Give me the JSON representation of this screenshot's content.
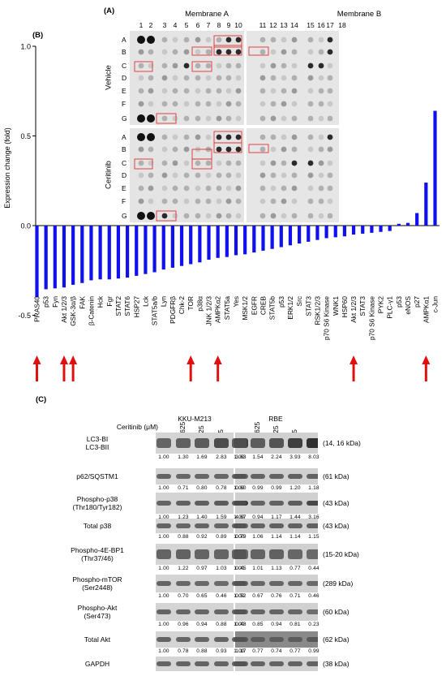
{
  "panel_a": {
    "label": "(A)",
    "membrane_a": "Membrane A",
    "membrane_b": "Membrane B",
    "columns": [
      "1",
      "2",
      "3",
      "4",
      "5",
      "6",
      "7",
      "8",
      "9",
      "10",
      "11",
      "12",
      "13",
      "14",
      "15",
      "16",
      "17",
      "18"
    ],
    "rows": [
      "A",
      "B",
      "C",
      "D",
      "E",
      "F",
      "G"
    ],
    "vehicle_label": "Vehicle",
    "ceritinib_label": "Ceritinib"
  },
  "panel_b_label": "(B)",
  "panel_c_label": "(C)",
  "chart_data": {
    "type": "bar",
    "ylabel": "Expression change (fold)",
    "ylim": [
      -0.5,
      1.0
    ],
    "yticks": [
      "1.0",
      "0.5",
      "0.0",
      "-0.5"
    ],
    "ytick_values": [
      1.0,
      0.5,
      0.0,
      -0.5
    ],
    "bar_color": "#1010ee",
    "categories": [
      "PRAS40",
      "p53",
      "Fyn",
      "Akt 1/2/3",
      "GSK-3α/β",
      "FAK",
      "β-Catenin",
      "Hck",
      "Fgr",
      "STAT2",
      "STAT6",
      "HSP27",
      "Lck",
      "STAT5a/b",
      "Lyn",
      "PDGFRβ",
      "Chk-2",
      "TOR",
      "p38α",
      "JNK 1/2/3",
      "AMPKα2",
      "STAT5a",
      "Yes",
      "MSK1/2",
      "EGFR",
      "CREB",
      "STAT5b",
      "p53",
      "ERK1/2",
      "Src",
      "STAT3",
      "RSK1/2/3",
      "p70 S6 Kinase",
      "WNK1",
      "HSP60",
      "Akt 1/2/3",
      "STAT3",
      "p70 S6 Kinase",
      "PYK2",
      "PLC-γ1",
      "p53",
      "eNOS",
      "p27",
      "AMPKα1",
      "c-Jun"
    ],
    "values": [
      -0.4,
      -0.355,
      -0.35,
      -0.345,
      -0.33,
      -0.32,
      -0.305,
      -0.3,
      -0.3,
      -0.295,
      -0.29,
      -0.28,
      -0.27,
      -0.26,
      -0.245,
      -0.235,
      -0.225,
      -0.215,
      -0.205,
      -0.19,
      -0.18,
      -0.175,
      -0.165,
      -0.16,
      -0.15,
      -0.14,
      -0.13,
      -0.12,
      -0.11,
      -0.1,
      -0.09,
      -0.08,
      -0.07,
      -0.065,
      -0.06,
      -0.05,
      -0.045,
      -0.04,
      -0.035,
      -0.03,
      0.01,
      0.015,
      0.07,
      0.24,
      0.64
    ],
    "highlighted": [
      "PRAS40",
      "Akt 1/2/3",
      "GSK-3α/β",
      "TOR",
      "AMPKα2",
      "Akt 1/2/3",
      "AMPKα1"
    ],
    "highlight_indices": [
      0,
      3,
      4,
      17,
      20,
      35,
      43
    ],
    "arrow_color": "#e01010"
  },
  "panel_c": {
    "cell_line_1": "KKU-M213",
    "cell_line_2": "RBE",
    "ceritinib_label": "Ceritinib (μM)",
    "doses": [
      "0",
      "0.625",
      "1.25",
      "2.5",
      "5"
    ],
    "blots": [
      {
        "name": "LC3-BI\nLC3-BII",
        "kda": "(14, 16 kDa)",
        "vals1": [
          "1.00",
          "1.30",
          "1.69",
          "2.83",
          "3.63"
        ],
        "vals2": [
          "1.00",
          "1.54",
          "2.24",
          "3.93",
          "8.03"
        ]
      },
      {
        "name": "p62/SQSTM1",
        "kda": "(61 kDa)",
        "vals1": [
          "1.00",
          "0.71",
          "0.80",
          "0.78",
          "0.60"
        ],
        "vals2": [
          "1.00",
          "0.99",
          "0.99",
          "1.20",
          "1.18"
        ]
      },
      {
        "name": "Phospho-p38\n(Thr180/Tyr182)",
        "kda": "(43 kDa)",
        "vals1": [
          "1.00",
          "1.23",
          "1.40",
          "1.59",
          "4.67"
        ],
        "vals2": [
          "1.00",
          "0.94",
          "1.17",
          "1.44",
          "3.16"
        ]
      },
      {
        "name": "Total p38",
        "kda": "(43 kDa)",
        "vals1": [
          "1.00",
          "0.88",
          "0.92",
          "0.89",
          "0.79"
        ],
        "vals2": [
          "1.00",
          "1.06",
          "1.14",
          "1.14",
          "1.15"
        ]
      },
      {
        "name": "Phospho-4E-BP1\n(Thr37/46)",
        "kda": "(15-20 kDa)",
        "vals1": [
          "1.00",
          "1.22",
          "0.97",
          "1.03",
          "0.45"
        ],
        "vals2": [
          "1.00",
          "1.01",
          "1.13",
          "0.77",
          "0.44"
        ]
      },
      {
        "name": "Phospho-mTOR\n(Ser2448)",
        "kda": "(289 kDa)",
        "vals1": [
          "1.00",
          "0.70",
          "0.65",
          "0.46",
          "0.52"
        ],
        "vals2": [
          "1.00",
          "0.67",
          "0.76",
          "0.71",
          "0.46"
        ]
      },
      {
        "name": "Phospho-Akt\n(Ser473)",
        "kda": "(60 kDa)",
        "vals1": [
          "1.00",
          "0.96",
          "0.94",
          "0.88",
          "0.48"
        ],
        "vals2": [
          "1.00",
          "0.85",
          "0.94",
          "0.81",
          "0.23"
        ]
      },
      {
        "name": "Total Akt",
        "kda": "(62 kDa)",
        "vals1": [
          "1.00",
          "0.78",
          "0.88",
          "0.93",
          "1.17"
        ],
        "vals2": [
          "1.00",
          "0.77",
          "0.74",
          "0.77",
          "0.99"
        ]
      },
      {
        "name": "GAPDH",
        "kda": "(38 kDa)",
        "vals1": [],
        "vals2": []
      }
    ]
  }
}
